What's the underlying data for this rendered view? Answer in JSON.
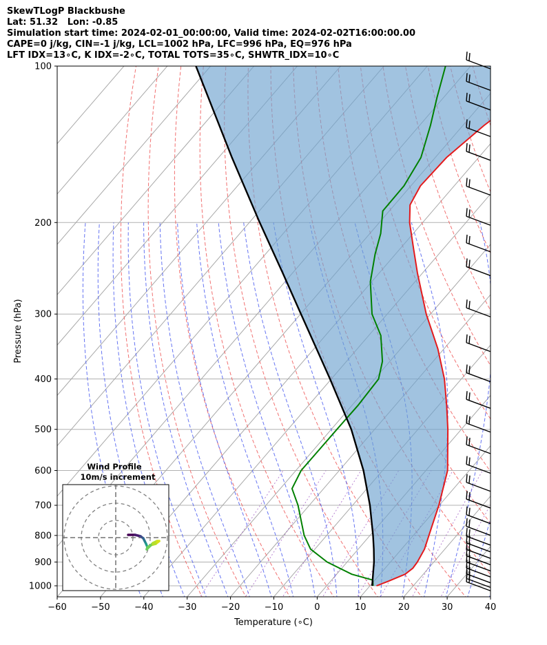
{
  "header": {
    "line1": "SkewTLogP Blackbushe",
    "line2": "Lat: 51.32   Lon: -0.85",
    "line3": "Simulation start time: 2024-02-01_00:00:00, Valid time: 2024-02-02T16:00:00.00",
    "line4": "CAPE=0 j/kg, CIN=-1 j/kg, LCL=1002 hPa, LFC=996 hPa, EQ=976 hPa",
    "line5": "LFT IDX=13∘C, K IDX=-2∘C, TOTAL TOTS=35∘C, SHWTR_IDX=10∘C"
  },
  "chart_data": {
    "type": "line",
    "subtype": "skew-t log-p",
    "xlabel": "Temperature (∘C)",
    "ylabel": "Pressure (hPa)",
    "x_ticks": [
      -60,
      -50,
      -40,
      -30,
      -20,
      -10,
      0,
      10,
      20,
      30,
      40
    ],
    "x_tick_labels": [
      "−60",
      "−50",
      "−40",
      "−30",
      "−20",
      "−10",
      "0",
      "10",
      "20",
      "30",
      "40"
    ],
    "y_ticks": [
      100,
      200,
      300,
      400,
      500,
      600,
      700,
      800,
      900,
      1000
    ],
    "xlim": [
      -60,
      40
    ],
    "ylim": [
      1050,
      100
    ],
    "y_scale": "log",
    "grid": true,
    "series": [
      {
        "key": "temperature",
        "color": "#e41a1c",
        "points": [
          [
            1000,
            11.5
          ],
          [
            980,
            13.3
          ],
          [
            950,
            15.8
          ],
          [
            925,
            16.4
          ],
          [
            900,
            16.2
          ],
          [
            850,
            15.3
          ],
          [
            800,
            13.6
          ],
          [
            700,
            9.9
          ],
          [
            600,
            5.0
          ],
          [
            500,
            -3.1
          ],
          [
            450,
            -8.1
          ],
          [
            400,
            -13.9
          ],
          [
            350,
            -21.4
          ],
          [
            300,
            -31.0
          ],
          [
            250,
            -41.2
          ],
          [
            225,
            -46.8
          ],
          [
            200,
            -53.0
          ],
          [
            185,
            -56.4
          ],
          [
            170,
            -57.8
          ],
          [
            150,
            -57.4
          ],
          [
            130,
            -55.1
          ],
          [
            115,
            -52.2
          ],
          [
            100,
            -49.7
          ]
        ]
      },
      {
        "key": "dewpoint",
        "color": "#008000",
        "points": [
          [
            1000,
            10.7
          ],
          [
            975,
            9.5
          ],
          [
            950,
            3.5
          ],
          [
            900,
            -4.6
          ],
          [
            850,
            -11.0
          ],
          [
            800,
            -15.2
          ],
          [
            700,
            -22.6
          ],
          [
            650,
            -27.3
          ],
          [
            600,
            -28.8
          ],
          [
            500,
            -28.7
          ],
          [
            450,
            -28.6
          ],
          [
            400,
            -29.1
          ],
          [
            370,
            -31.7
          ],
          [
            330,
            -37.2
          ],
          [
            300,
            -43.5
          ],
          [
            260,
            -50.3
          ],
          [
            230,
            -54.7
          ],
          [
            210,
            -57.5
          ],
          [
            190,
            -61.5
          ],
          [
            170,
            -61.6
          ],
          [
            150,
            -63.3
          ],
          [
            130,
            -67.5
          ],
          [
            115,
            -71.5
          ],
          [
            100,
            -75.8
          ]
        ]
      },
      {
        "key": "parcel",
        "color": "#000000",
        "points": [
          [
            1000,
            10.5
          ],
          [
            950,
            8.4
          ],
          [
            900,
            6.2
          ],
          [
            850,
            3.6
          ],
          [
            800,
            0.7
          ],
          [
            700,
            -6.0
          ],
          [
            600,
            -14.4
          ],
          [
            500,
            -25.4
          ],
          [
            400,
            -40.3
          ],
          [
            300,
            -59.9
          ],
          [
            250,
            -72.3
          ],
          [
            200,
            -87.6
          ],
          [
            150,
            -106.9
          ],
          [
            100,
            -133.4
          ]
        ]
      }
    ],
    "wind_barb_pressures": [
      1010,
      995,
      975,
      950,
      925,
      900,
      875,
      850,
      825,
      790,
      750,
      700,
      650,
      600,
      550,
      500,
      450,
      400,
      350,
      300,
      250,
      225,
      200,
      175,
      150,
      135,
      120,
      110,
      100
    ]
  },
  "inset": {
    "title": "Wind Profile",
    "subtitle": "10m/s increment"
  }
}
